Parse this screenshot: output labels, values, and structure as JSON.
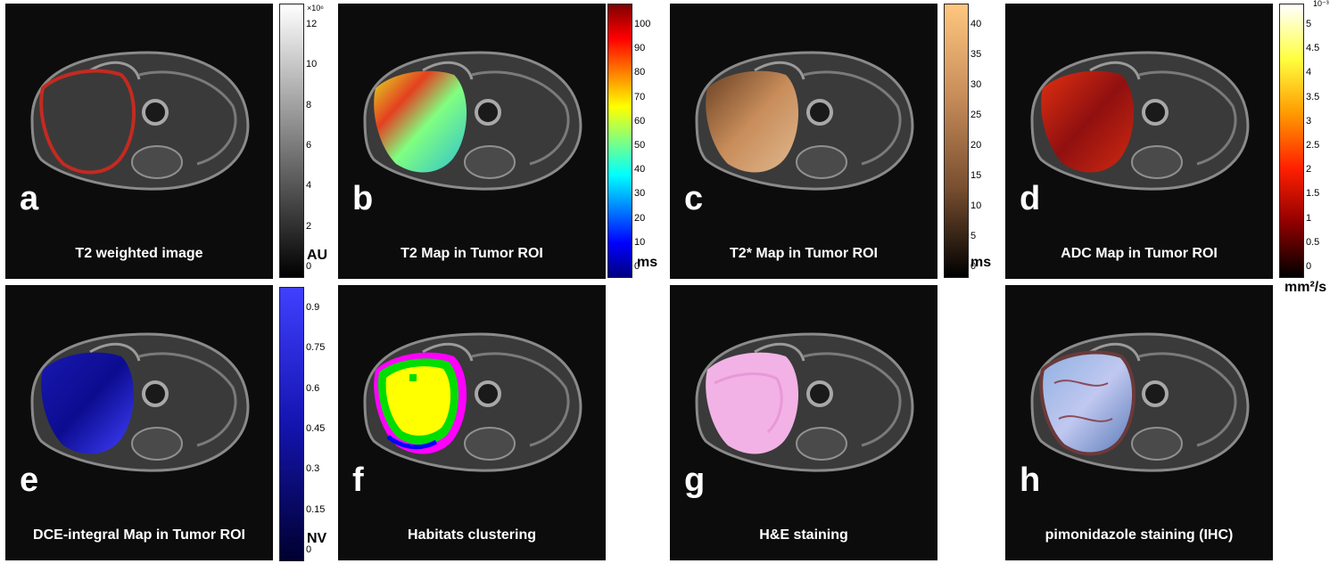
{
  "panels": [
    {
      "letter": "a",
      "caption": "T2 weighted image"
    },
    {
      "letter": "b",
      "caption": "T2 Map in Tumor ROI"
    },
    {
      "letter": "c",
      "caption": "T2* Map in Tumor ROI"
    },
    {
      "letter": "d",
      "caption": "ADC Map in Tumor ROI"
    },
    {
      "letter": "e",
      "caption": "DCE-integral Map in Tumor ROI"
    },
    {
      "letter": "f",
      "caption": "Habitats clustering"
    },
    {
      "letter": "g",
      "caption": "H&E staining"
    },
    {
      "letter": "h",
      "caption": "pimonidazole staining (IHC)"
    }
  ],
  "colorbars": {
    "a": {
      "exponent": "×10⁶",
      "unit": "AU",
      "ticks": [
        "12",
        "10",
        "8",
        "6",
        "4",
        "2",
        "0"
      ],
      "colors": [
        "#ffffff",
        "#000000"
      ]
    },
    "b": {
      "unit": "ms",
      "ticks": [
        "100",
        "90",
        "80",
        "70",
        "60",
        "50",
        "40",
        "30",
        "20",
        "10",
        "0"
      ],
      "colors": [
        "#7f0000",
        "#ff0000",
        "#ff8000",
        "#ffff00",
        "#80ff80",
        "#00ffff",
        "#0080ff",
        "#0000ff",
        "#00007f"
      ]
    },
    "c": {
      "unit": "ms",
      "ticks": [
        "40",
        "35",
        "30",
        "25",
        "20",
        "15",
        "10",
        "5",
        "0"
      ],
      "colors": [
        "#ffc77f",
        "#c88d5a",
        "#7a5030",
        "#000000"
      ]
    },
    "d": {
      "exponent": "10⁻³",
      "unit": "mm²/s",
      "ticks": [
        "5",
        "4.5",
        "4",
        "3.5",
        "3",
        "2.5",
        "2",
        "1.5",
        "1",
        "0.5",
        "0"
      ],
      "colors": [
        "#ffffff",
        "#ffff40",
        "#ff9a00",
        "#ff2000",
        "#900000",
        "#000000"
      ]
    },
    "e": {
      "unit": "NV",
      "ticks": [
        "0.9",
        "0.75",
        "0.6",
        "0.45",
        "0.3",
        "0.15",
        "0"
      ],
      "colors": [
        "#4040ff",
        "#1414b0",
        "#000030"
      ]
    }
  }
}
